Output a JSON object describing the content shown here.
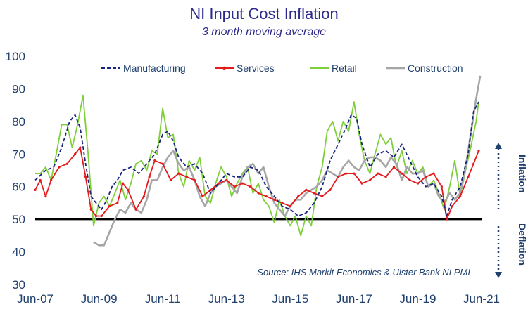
{
  "chart_data": {
    "type": "line",
    "title": "NI Input Cost Inflation",
    "subtitle": "3 month moving average",
    "xlabel": "",
    "ylabel": "",
    "ylim": [
      30,
      100
    ],
    "yticks": [
      30,
      40,
      50,
      60,
      70,
      80,
      90,
      100
    ],
    "xlim": [
      2007.42,
      2021.42
    ],
    "xticks": [
      {
        "x": 2007.42,
        "label": "Jun-07"
      },
      {
        "x": 2009.42,
        "label": "Jun-09"
      },
      {
        "x": 2011.42,
        "label": "Jun-11"
      },
      {
        "x": 2013.42,
        "label": "Jun-13"
      },
      {
        "x": 2015.42,
        "label": "Jun-15"
      },
      {
        "x": 2017.42,
        "label": "Jun-17"
      },
      {
        "x": 2019.42,
        "label": "Jun-19"
      },
      {
        "x": 2021.42,
        "label": "Jun-21"
      }
    ],
    "reference_line": {
      "y": 50,
      "color": "#000000"
    },
    "side_labels": {
      "upper": "Inflation",
      "lower": "Deflation"
    },
    "source": "Source: IHS Markit Economics & Ulster Bank NI PMI",
    "legend_position": "top",
    "series": [
      {
        "name": "Manufacturing",
        "color": "#1a237e",
        "style": "dashed",
        "points": [
          [
            2007.42,
            62
          ],
          [
            2007.75,
            65
          ],
          [
            2008.0,
            66
          ],
          [
            2008.25,
            72
          ],
          [
            2008.5,
            80
          ],
          [
            2008.67,
            82
          ],
          [
            2008.83,
            78
          ],
          [
            2009.0,
            67
          ],
          [
            2009.17,
            57
          ],
          [
            2009.33,
            55
          ],
          [
            2009.5,
            53
          ],
          [
            2009.67,
            56
          ],
          [
            2009.83,
            60
          ],
          [
            2010.0,
            62
          ],
          [
            2010.17,
            65
          ],
          [
            2010.42,
            66
          ],
          [
            2010.67,
            64
          ],
          [
            2010.92,
            67
          ],
          [
            2011.17,
            70
          ],
          [
            2011.42,
            76
          ],
          [
            2011.58,
            77
          ],
          [
            2011.75,
            74
          ],
          [
            2011.92,
            69
          ],
          [
            2012.17,
            66
          ],
          [
            2012.42,
            67
          ],
          [
            2012.67,
            64
          ],
          [
            2012.92,
            58
          ],
          [
            2013.17,
            61
          ],
          [
            2013.42,
            64
          ],
          [
            2013.67,
            63
          ],
          [
            2013.92,
            63
          ],
          [
            2014.17,
            66
          ],
          [
            2014.42,
            65
          ],
          [
            2014.67,
            60
          ],
          [
            2014.92,
            57
          ],
          [
            2015.17,
            54
          ],
          [
            2015.42,
            53
          ],
          [
            2015.67,
            51
          ],
          [
            2015.92,
            52
          ],
          [
            2016.17,
            55
          ],
          [
            2016.42,
            60
          ],
          [
            2016.67,
            68
          ],
          [
            2016.92,
            73
          ],
          [
            2017.17,
            78
          ],
          [
            2017.33,
            82
          ],
          [
            2017.5,
            81
          ],
          [
            2017.67,
            73
          ],
          [
            2017.92,
            66
          ],
          [
            2018.17,
            70
          ],
          [
            2018.42,
            71
          ],
          [
            2018.67,
            69
          ],
          [
            2018.92,
            73
          ],
          [
            2019.17,
            68
          ],
          [
            2019.42,
            63
          ],
          [
            2019.67,
            60
          ],
          [
            2019.92,
            61
          ],
          [
            2020.17,
            57
          ],
          [
            2020.33,
            51
          ],
          [
            2020.5,
            56
          ],
          [
            2020.75,
            60
          ],
          [
            2021.0,
            70
          ],
          [
            2021.17,
            83
          ],
          [
            2021.33,
            86
          ]
        ]
      },
      {
        "name": "Services",
        "color": "#e41a1c",
        "style": "solid",
        "points": [
          [
            2007.42,
            59
          ],
          [
            2007.58,
            62
          ],
          [
            2007.75,
            57
          ],
          [
            2007.92,
            62
          ],
          [
            2008.17,
            66
          ],
          [
            2008.42,
            67
          ],
          [
            2008.67,
            70
          ],
          [
            2008.83,
            72
          ],
          [
            2009.0,
            63
          ],
          [
            2009.17,
            53
          ],
          [
            2009.33,
            51
          ],
          [
            2009.5,
            51
          ],
          [
            2009.75,
            54
          ],
          [
            2010.0,
            55
          ],
          [
            2010.17,
            61
          ],
          [
            2010.33,
            59
          ],
          [
            2010.58,
            53
          ],
          [
            2010.83,
            57
          ],
          [
            2011.0,
            63
          ],
          [
            2011.17,
            68
          ],
          [
            2011.42,
            67
          ],
          [
            2011.67,
            62
          ],
          [
            2011.92,
            64
          ],
          [
            2012.17,
            63
          ],
          [
            2012.42,
            62
          ],
          [
            2012.67,
            57
          ],
          [
            2012.92,
            59
          ],
          [
            2013.17,
            61
          ],
          [
            2013.42,
            62
          ],
          [
            2013.67,
            60
          ],
          [
            2013.92,
            61
          ],
          [
            2014.17,
            60
          ],
          [
            2014.42,
            58
          ],
          [
            2014.67,
            57
          ],
          [
            2014.92,
            56
          ],
          [
            2015.17,
            55
          ],
          [
            2015.42,
            54
          ],
          [
            2015.67,
            57
          ],
          [
            2015.92,
            59
          ],
          [
            2016.17,
            58
          ],
          [
            2016.42,
            57
          ],
          [
            2016.67,
            59
          ],
          [
            2016.92,
            63
          ],
          [
            2017.17,
            64
          ],
          [
            2017.42,
            64
          ],
          [
            2017.67,
            61
          ],
          [
            2017.92,
            62
          ],
          [
            2018.17,
            64
          ],
          [
            2018.42,
            63
          ],
          [
            2018.67,
            66
          ],
          [
            2018.92,
            64
          ],
          [
            2019.17,
            62
          ],
          [
            2019.42,
            61
          ],
          [
            2019.67,
            63
          ],
          [
            2019.92,
            64
          ],
          [
            2020.17,
            60
          ],
          [
            2020.33,
            50
          ],
          [
            2020.5,
            54
          ],
          [
            2020.75,
            57
          ],
          [
            2021.0,
            63
          ],
          [
            2021.17,
            67
          ],
          [
            2021.33,
            71
          ]
        ]
      },
      {
        "name": "Retail",
        "color": "#7fcf3c",
        "style": "solid",
        "points": [
          [
            2007.42,
            64
          ],
          [
            2007.58,
            64
          ],
          [
            2007.75,
            66
          ],
          [
            2007.92,
            62
          ],
          [
            2008.08,
            70
          ],
          [
            2008.25,
            79
          ],
          [
            2008.42,
            79
          ],
          [
            2008.58,
            72
          ],
          [
            2008.75,
            79
          ],
          [
            2008.92,
            88
          ],
          [
            2009.08,
            70
          ],
          [
            2009.25,
            48
          ],
          [
            2009.42,
            55
          ],
          [
            2009.58,
            57
          ],
          [
            2009.75,
            54
          ],
          [
            2009.92,
            58
          ],
          [
            2010.08,
            62
          ],
          [
            2010.25,
            56
          ],
          [
            2010.42,
            61
          ],
          [
            2010.58,
            67
          ],
          [
            2010.75,
            68
          ],
          [
            2010.92,
            65
          ],
          [
            2011.08,
            71
          ],
          [
            2011.25,
            70
          ],
          [
            2011.42,
            84
          ],
          [
            2011.58,
            75
          ],
          [
            2011.75,
            76
          ],
          [
            2011.92,
            64
          ],
          [
            2012.08,
            60
          ],
          [
            2012.25,
            68
          ],
          [
            2012.42,
            65
          ],
          [
            2012.58,
            69
          ],
          [
            2012.75,
            57
          ],
          [
            2012.92,
            55
          ],
          [
            2013.08,
            61
          ],
          [
            2013.25,
            66
          ],
          [
            2013.42,
            63
          ],
          [
            2013.58,
            57
          ],
          [
            2013.75,
            61
          ],
          [
            2013.92,
            64
          ],
          [
            2014.08,
            66
          ],
          [
            2014.25,
            58
          ],
          [
            2014.42,
            61
          ],
          [
            2014.58,
            56
          ],
          [
            2014.75,
            54
          ],
          [
            2014.92,
            49
          ],
          [
            2015.08,
            56
          ],
          [
            2015.25,
            51
          ],
          [
            2015.42,
            48
          ],
          [
            2015.58,
            51
          ],
          [
            2015.75,
            45
          ],
          [
            2015.92,
            51
          ],
          [
            2016.08,
            48
          ],
          [
            2016.25,
            60
          ],
          [
            2016.42,
            66
          ],
          [
            2016.58,
            77
          ],
          [
            2016.75,
            80
          ],
          [
            2016.92,
            74
          ],
          [
            2017.08,
            80
          ],
          [
            2017.25,
            77
          ],
          [
            2017.42,
            86
          ],
          [
            2017.58,
            76
          ],
          [
            2017.75,
            68
          ],
          [
            2017.92,
            64
          ],
          [
            2018.08,
            70
          ],
          [
            2018.25,
            76
          ],
          [
            2018.42,
            73
          ],
          [
            2018.58,
            75
          ],
          [
            2018.75,
            66
          ],
          [
            2018.92,
            71
          ],
          [
            2019.08,
            64
          ],
          [
            2019.25,
            68
          ],
          [
            2019.42,
            64
          ],
          [
            2019.58,
            66
          ],
          [
            2019.75,
            60
          ],
          [
            2019.92,
            62
          ],
          [
            2020.08,
            58
          ],
          [
            2020.25,
            53
          ],
          [
            2020.42,
            60
          ],
          [
            2020.58,
            68
          ],
          [
            2020.75,
            57
          ],
          [
            2020.92,
            65
          ],
          [
            2021.08,
            72
          ],
          [
            2021.25,
            80
          ],
          [
            2021.33,
            86
          ]
        ]
      },
      {
        "name": "Construction",
        "color": "#a6a6a6",
        "style": "solid",
        "points": [
          [
            2009.25,
            43
          ],
          [
            2009.42,
            42
          ],
          [
            2009.58,
            42
          ],
          [
            2009.75,
            46
          ],
          [
            2009.92,
            50
          ],
          [
            2010.08,
            53
          ],
          [
            2010.25,
            52
          ],
          [
            2010.42,
            55
          ],
          [
            2010.58,
            53
          ],
          [
            2010.75,
            52
          ],
          [
            2010.92,
            56
          ],
          [
            2011.08,
            62
          ],
          [
            2011.25,
            62
          ],
          [
            2011.42,
            66
          ],
          [
            2011.58,
            69
          ],
          [
            2011.75,
            71
          ],
          [
            2011.92,
            67
          ],
          [
            2012.08,
            65
          ],
          [
            2012.25,
            66
          ],
          [
            2012.42,
            62
          ],
          [
            2012.58,
            57
          ],
          [
            2012.75,
            54
          ],
          [
            2012.92,
            58
          ],
          [
            2013.08,
            60
          ],
          [
            2013.25,
            61
          ],
          [
            2013.42,
            62
          ],
          [
            2013.58,
            60
          ],
          [
            2013.75,
            58
          ],
          [
            2013.92,
            63
          ],
          [
            2014.08,
            66
          ],
          [
            2014.25,
            67
          ],
          [
            2014.42,
            64
          ],
          [
            2014.58,
            66
          ],
          [
            2014.75,
            60
          ],
          [
            2014.92,
            55
          ],
          [
            2015.08,
            53
          ],
          [
            2015.25,
            51
          ],
          [
            2015.42,
            54
          ],
          [
            2015.58,
            56
          ],
          [
            2015.75,
            56
          ],
          [
            2015.92,
            58
          ],
          [
            2016.08,
            59
          ],
          [
            2016.25,
            60
          ],
          [
            2016.42,
            62
          ],
          [
            2016.58,
            65
          ],
          [
            2016.75,
            64
          ],
          [
            2016.92,
            63
          ],
          [
            2017.08,
            66
          ],
          [
            2017.25,
            68
          ],
          [
            2017.42,
            66
          ],
          [
            2017.58,
            65
          ],
          [
            2017.75,
            68
          ],
          [
            2017.92,
            69
          ],
          [
            2018.08,
            69
          ],
          [
            2018.25,
            68
          ],
          [
            2018.42,
            66
          ],
          [
            2018.58,
            69
          ],
          [
            2018.75,
            67
          ],
          [
            2018.92,
            62
          ],
          [
            2019.08,
            66
          ],
          [
            2019.25,
            64
          ],
          [
            2019.42,
            64
          ],
          [
            2019.58,
            65
          ],
          [
            2019.75,
            60
          ],
          [
            2019.92,
            61
          ],
          [
            2020.08,
            57
          ],
          [
            2020.25,
            55
          ],
          [
            2020.42,
            58
          ],
          [
            2020.58,
            56
          ],
          [
            2020.75,
            58
          ],
          [
            2020.92,
            66
          ],
          [
            2021.08,
            76
          ],
          [
            2021.25,
            87
          ],
          [
            2021.38,
            94
          ]
        ]
      }
    ]
  }
}
